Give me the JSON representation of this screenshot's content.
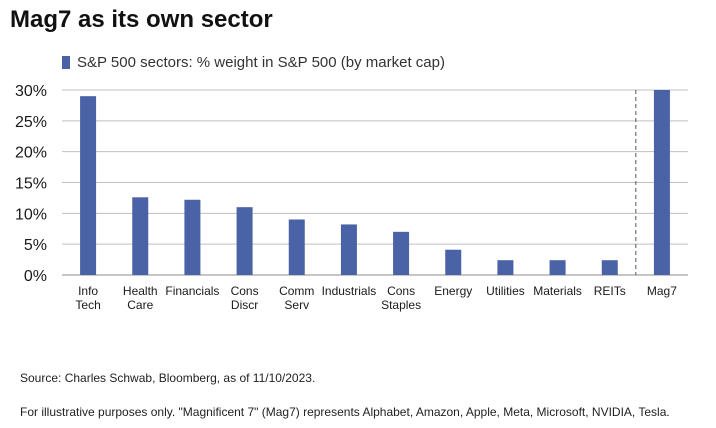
{
  "title": "Mag7 as its own sector",
  "footnotes": {
    "source": "Source: Charles Schwab, Bloomberg, as of 11/10/2023.",
    "disclaimer": "For illustrative purposes only.  \"Magnificent 7\" (Mag7) represents Alphabet, Amazon, Apple, Meta, Microsoft, NVIDIA, Tesla."
  },
  "colors": {
    "bar": "#4a62a6",
    "grid": "#bfbfbf",
    "divider": "#555555"
  },
  "chart_data": {
    "type": "bar",
    "title": "Mag7 as its own sector",
    "xlabel": "",
    "ylabel": "",
    "ylim": [
      0,
      30
    ],
    "yticks": [
      0,
      5,
      10,
      15,
      20,
      25,
      30
    ],
    "ytick_labels": [
      "0%",
      "5%",
      "10%",
      "15%",
      "20%",
      "25%",
      "30%"
    ],
    "grid": true,
    "legend": "top-left",
    "series": [
      {
        "name": "S&P 500 sectors: % weight in S&P 500 (by market cap)",
        "values": [
          29.0,
          12.6,
          12.2,
          11.0,
          9.0,
          8.2,
          7.0,
          4.1,
          2.4,
          2.4,
          2.4,
          30.0
        ]
      }
    ],
    "categories": [
      [
        "Info",
        "Tech"
      ],
      [
        "Health",
        "Care"
      ],
      [
        "Financials"
      ],
      [
        "Cons",
        "Discr"
      ],
      [
        "Comm",
        "Serv"
      ],
      [
        "Industrials"
      ],
      [
        "Cons",
        "Staples"
      ],
      [
        "Energy"
      ],
      [
        "Utilities"
      ],
      [
        "Materials"
      ],
      [
        "REITs"
      ],
      [
        "Mag7"
      ]
    ],
    "annotations": [
      "dashed vertical separator before Mag7"
    ]
  }
}
